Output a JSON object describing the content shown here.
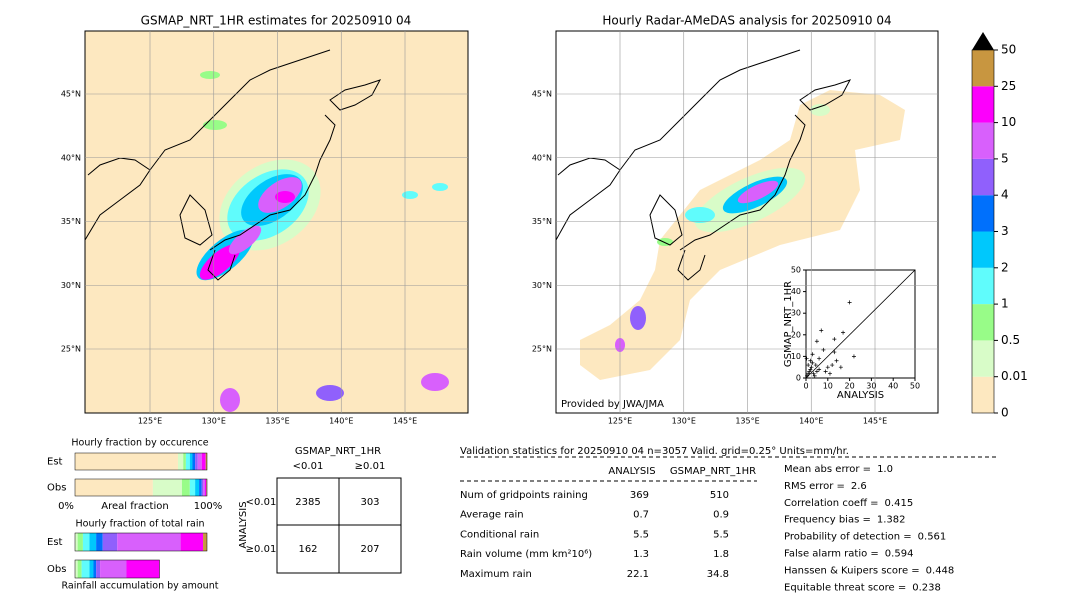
{
  "maps": [
    {
      "title": "GSMAP_NRT_1HR estimates for 20250910 04",
      "lat_labels": [
        "45°N",
        "40°N",
        "35°N",
        "30°N",
        "25°N"
      ],
      "lon_labels": [
        "125°E",
        "130°E",
        "135°E",
        "140°E",
        "145°E"
      ]
    },
    {
      "title": "Hourly Radar-AMeDAS analysis for 20250910 04",
      "lat_labels": [
        "45°N",
        "40°N",
        "35°N",
        "30°N",
        "25°N"
      ],
      "lon_labels": [
        "125°E",
        "130°E",
        "135°E",
        "140°E",
        "145°E"
      ],
      "credit": "Provided by JWA/JMA"
    }
  ],
  "colorbar": {
    "ticks": [
      0,
      0.01,
      0.5,
      1,
      2,
      3,
      4,
      5,
      10,
      25,
      50
    ],
    "colors": [
      "#fde8c0",
      "#d8fcc8",
      "#98fc88",
      "#60fcfc",
      "#00c8fc",
      "#0070fc",
      "#9060fc",
      "#d860fc",
      "#fc00fc",
      "#c89640"
    ],
    "over_color": "#000000"
  },
  "scatter": {
    "type": "scatter",
    "xlabel": "ANALYSIS",
    "ylabel": "GSMAP_NRT_1HR",
    "xlim": [
      0,
      50
    ],
    "ylim": [
      0,
      50
    ],
    "xticks": [
      0,
      10,
      20,
      30,
      40,
      50
    ],
    "yticks": [
      0,
      10,
      20,
      30,
      40,
      50
    ],
    "x": [
      20,
      7,
      5,
      17,
      13,
      22,
      8,
      3,
      13,
      14,
      10,
      2,
      5,
      1,
      3,
      6,
      12,
      9,
      4,
      2,
      16,
      1,
      0.5,
      1.5,
      2.5,
      3.5,
      0.3,
      4.5,
      6,
      11
    ],
    "y": [
      35,
      22,
      17,
      21,
      18,
      10,
      13,
      11,
      12,
      8,
      5,
      4,
      3,
      2,
      7,
      9,
      6,
      3,
      1,
      8,
      5,
      6,
      1,
      3,
      5,
      2,
      9,
      6,
      4,
      2
    ],
    "color": "#000000"
  },
  "fraction_occurrence": {
    "title": "Hourly fraction by occurence",
    "rows": [
      "Est",
      "Obs"
    ],
    "series": [
      {
        "color": "#fde8c0",
        "values": [
          78,
          59
        ]
      },
      {
        "color": "#d8fcc8",
        "values": [
          4,
          22
        ]
      },
      {
        "color": "#98fc88",
        "values": [
          2,
          6
        ]
      },
      {
        "color": "#60fcfc",
        "values": [
          3,
          4
        ]
      },
      {
        "color": "#00c8fc",
        "values": [
          2,
          3
        ]
      },
      {
        "color": "#0070fc",
        "values": [
          2,
          2
        ]
      },
      {
        "color": "#9060fc",
        "values": [
          2,
          1
        ]
      },
      {
        "color": "#d860fc",
        "values": [
          3,
          1.5
        ]
      },
      {
        "color": "#fc00fc",
        "values": [
          3,
          1
        ]
      },
      {
        "color": "#c89640",
        "values": [
          1,
          0.5
        ]
      }
    ],
    "left_label": "0%",
    "xlabel": "Areal fraction",
    "right_label": "100%"
  },
  "fraction_total": {
    "title": "Hourly fraction of total rain",
    "rows": [
      "Est",
      "Obs"
    ],
    "series": [
      {
        "color": "#d8fcc8",
        "values": [
          2,
          2
        ]
      },
      {
        "color": "#98fc88",
        "values": [
          4,
          3
        ]
      },
      {
        "color": "#60fcfc",
        "values": [
          5,
          6
        ]
      },
      {
        "color": "#00c8fc",
        "values": [
          5,
          3
        ]
      },
      {
        "color": "#0070fc",
        "values": [
          5,
          2
        ]
      },
      {
        "color": "#9060fc",
        "values": [
          11,
          3
        ]
      },
      {
        "color": "#d860fc",
        "values": [
          48,
          20
        ]
      },
      {
        "color": "#fc00fc",
        "values": [
          17,
          25
        ]
      },
      {
        "color": "#c89640",
        "values": [
          3,
          0
        ]
      }
    ],
    "xlabel": "Rainfall accumulation by amount"
  },
  "contingency": {
    "title": "GSMAP_NRT_1HR",
    "columns": [
      "<0.01",
      "≥0.01"
    ],
    "row_title": "ANALYSIS",
    "rows": [
      "<0.01",
      "≥0.01"
    ],
    "cells": [
      [
        2385,
        303
      ],
      [
        162,
        207
      ]
    ]
  },
  "validation": {
    "header": "Validation statistics for 20250910 04  n=3057 Valid. grid=0.25° Units=mm/hr.",
    "columns": [
      "ANALYSIS",
      "GSMAP_NRT_1HR"
    ],
    "rows": [
      {
        "label": "Num of gridpoints raining",
        "values": [
          369,
          510
        ]
      },
      {
        "label": "Average rain",
        "values": [
          0.7,
          0.9
        ]
      },
      {
        "label": "Conditional rain",
        "values": [
          5.5,
          5.5
        ]
      },
      {
        "label": "Rain volume (mm km²10⁶)",
        "values": [
          1.3,
          1.8
        ]
      },
      {
        "label": "Maximum rain",
        "values": [
          22.1,
          34.8
        ]
      }
    ],
    "scores": [
      {
        "label": "Mean abs error =",
        "value": "1.0"
      },
      {
        "label": "RMS error =",
        "value": "2.6"
      },
      {
        "label": "Correlation coeff =",
        "value": "0.415"
      },
      {
        "label": "Frequency bias =",
        "value": "1.382"
      },
      {
        "label": "Probability of detection =",
        "value": "0.561"
      },
      {
        "label": "False alarm ratio =",
        "value": "0.594"
      },
      {
        "label": "Hanssen & Kuipers score =",
        "value": "0.448"
      },
      {
        "label": "Equitable threat score =",
        "value": "0.238"
      }
    ]
  }
}
